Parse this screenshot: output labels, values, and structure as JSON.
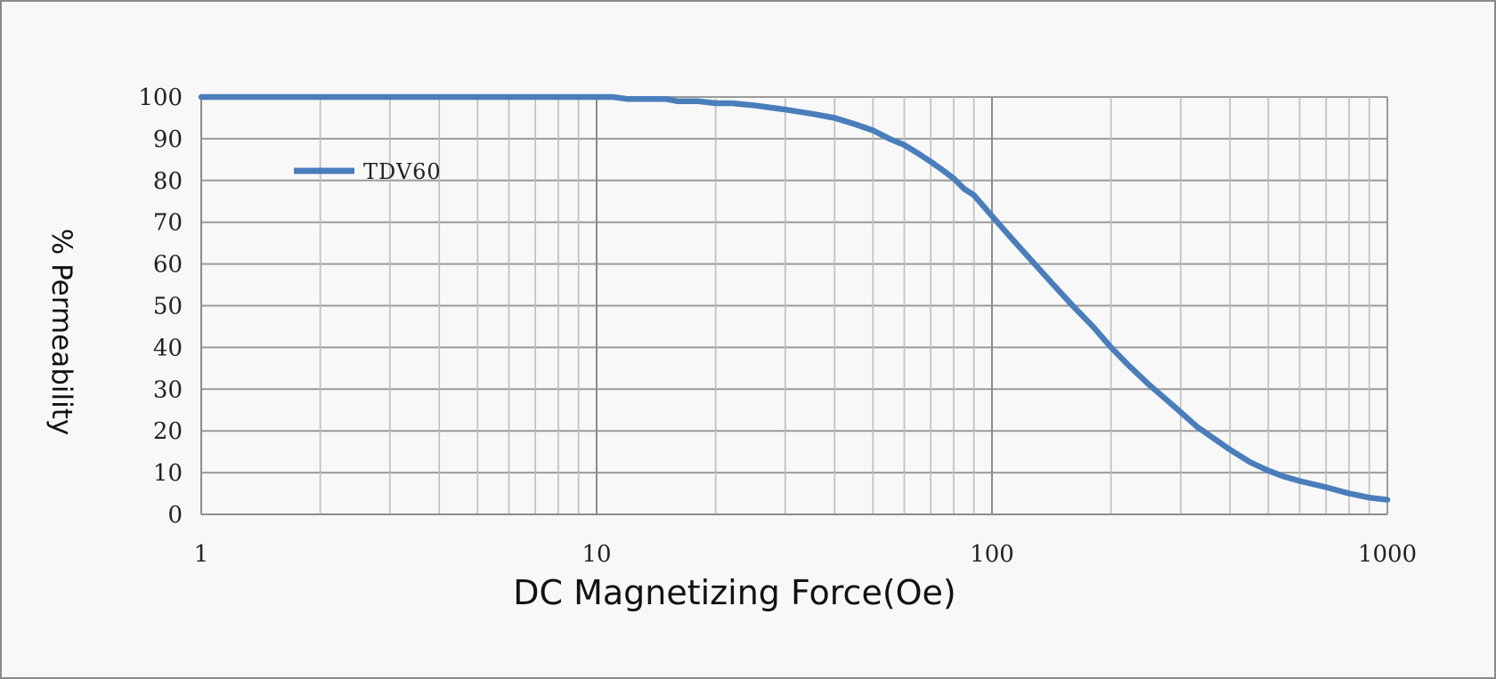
{
  "chart_data": {
    "type": "line",
    "xscale": "log",
    "xlim": [
      1,
      1000
    ],
    "ylim": [
      0,
      100
    ],
    "xlabel": "DC Magnetizing Force(Oe)",
    "ylabel": "% Permeability",
    "title": "",
    "x_ticks": [
      "1",
      "10",
      "100",
      "1000"
    ],
    "y_ticks": [
      "0",
      "10",
      "20",
      "30",
      "40",
      "50",
      "60",
      "70",
      "80",
      "90",
      "100"
    ],
    "grid": true,
    "legend_position": "top-left",
    "series": [
      {
        "name": "TDV60",
        "color": "#4a7ebb",
        "x": [
          1,
          2,
          5,
          10,
          11,
          12,
          15,
          16,
          18,
          20,
          22,
          25,
          30,
          35,
          40,
          45,
          50,
          55,
          60,
          65,
          70,
          75,
          80,
          85,
          90,
          100,
          110,
          120,
          140,
          160,
          180,
          200,
          220,
          250,
          280,
          300,
          330,
          360,
          400,
          450,
          500,
          550,
          600,
          700,
          800,
          900,
          1000
        ],
        "y": [
          100,
          100,
          100,
          100,
          100,
          99.5,
          99.5,
          99,
          99,
          98.5,
          98.5,
          98,
          97,
          96,
          95,
          93.5,
          92,
          90,
          88.5,
          86.5,
          84.5,
          82.5,
          80.5,
          78,
          76.5,
          71.5,
          67,
          63,
          56,
          50,
          45,
          40,
          36,
          31,
          27,
          24.5,
          21,
          18.5,
          15.5,
          12.5,
          10.5,
          9,
          8,
          6.5,
          5,
          4,
          3.5
        ]
      }
    ]
  }
}
